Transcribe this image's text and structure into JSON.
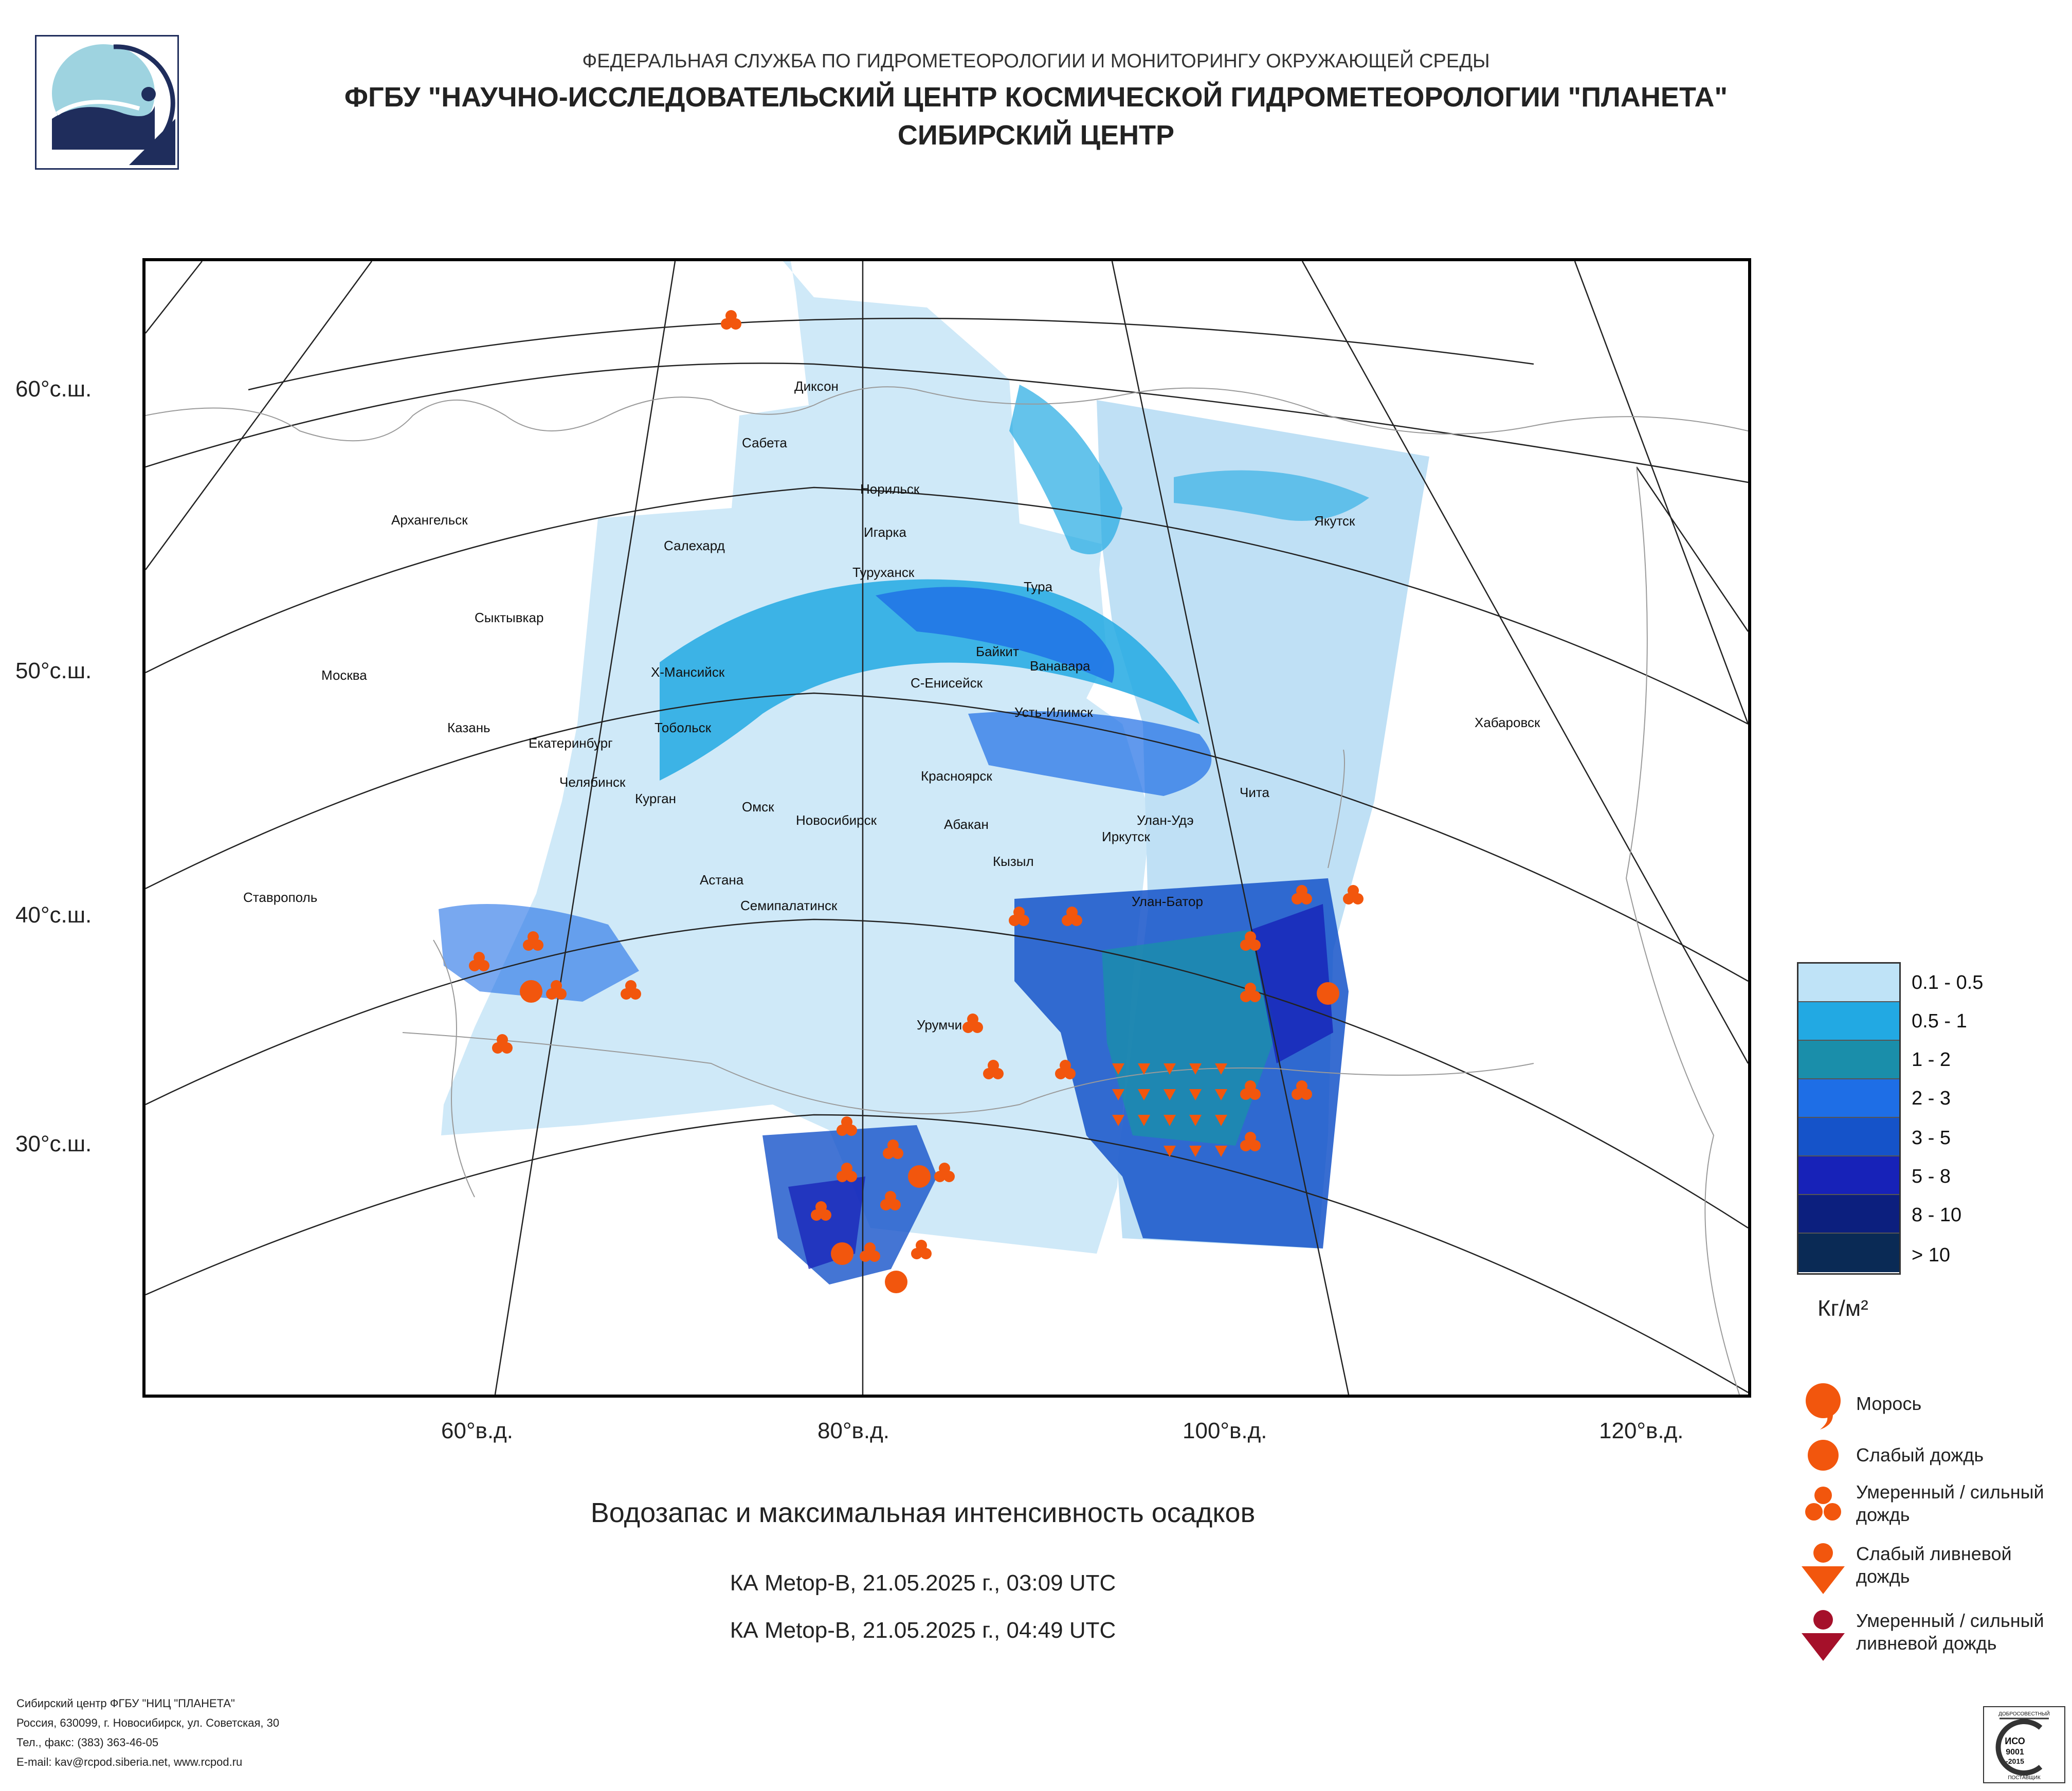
{
  "header": {
    "agency": "ФЕДЕРАЛЬНАЯ СЛУЖБА ПО ГИДРОМЕТЕОРОЛОГИИ И МОНИТОРИНГУ ОКРУЖАЮЩЕЙ СРЕДЫ",
    "org": "ФГБУ \"НАУЧНО-ИССЛЕДОВАТЕЛЬСКИЙ ЦЕНТР КОСМИЧЕСКОЙ ГИДРОМЕТЕОРОЛОГИИ \"ПЛАНЕТА\"",
    "center": "СИБИРСКИЙ ЦЕНТР"
  },
  "map": {
    "lat_labels": [
      "60°с.ш.",
      "50°с.ш.",
      "40°с.ш.",
      "30°с.ш."
    ],
    "lon_labels": [
      "60°в.д.",
      "80°в.д.",
      "100°в.д.",
      "120°в.д."
    ],
    "cities": [
      "Диксон",
      "Сабета",
      "Норильск",
      "Архангельск",
      "Игарка",
      "Салехард",
      "Якутск",
      "Туруханск",
      "Тура",
      "Сыктывкар",
      "Байкит",
      "Ванавара",
      "Москва",
      "Х-Мансийск",
      "С-Енисейск",
      "Усть-Илимск",
      "Хабаровск",
      "Казань",
      "Тобольск",
      "Екатеринбург",
      "Красноярск",
      "Челябинск",
      "Курган",
      "Омск",
      "Чита",
      "Новосибирск",
      "Абакан",
      "Улан-Удэ",
      "Иркутск",
      "Кызыл",
      "Астана",
      "Ставрополь",
      "Семипалатинск",
      "Улан-Батор",
      "Урумчи"
    ]
  },
  "legend": {
    "classes": [
      "0.1 - 0.5",
      "0.5 - 1",
      "1 - 2",
      "2 - 3",
      "3 - 5",
      "5 - 8",
      "8 - 10",
      "> 10"
    ],
    "colors": [
      "#bfe3f7",
      "#22a9e3",
      "#1a8eaa",
      "#1e6ee6",
      "#1553c9",
      "#1722b8",
      "#0c1f7e",
      "#0a2a55"
    ],
    "units": "Кг/м²",
    "symbols": [
      "Морось",
      "Слабый дождь",
      "Умеренный / сильный дождь",
      "Слабый ливневой дождь",
      "Умеренный / сильный ливневой дождь"
    ],
    "symbol_colors": [
      "#f2560d",
      "#f2560d",
      "#f2560d",
      "#f2560d",
      "#a5102a"
    ]
  },
  "title": "Водозапас и максимальная интенсивность осадков",
  "subtitles": [
    "КА Metop-B, 21.05.2025 г., 03:09 UTC",
    "КА Metop-B, 21.05.2025 г., 04:49 UTC"
  ],
  "footer": [
    "Сибирский центр ФГБУ \"НИЦ \"ПЛАНЕТА\"",
    "Россия, 630099, г. Новосибирск, ул. Советская, 30",
    "Тел., факс: (383) 363-46-05",
    "E-mail: kav@rcpod.siberia.net, www.rcpod.ru"
  ],
  "badge": {
    "top": "ДОБРОСОВЕСТНЫЙ",
    "middle": "ИСО 9001 -2015",
    "bottom": "ПОСТАВЩИК"
  }
}
